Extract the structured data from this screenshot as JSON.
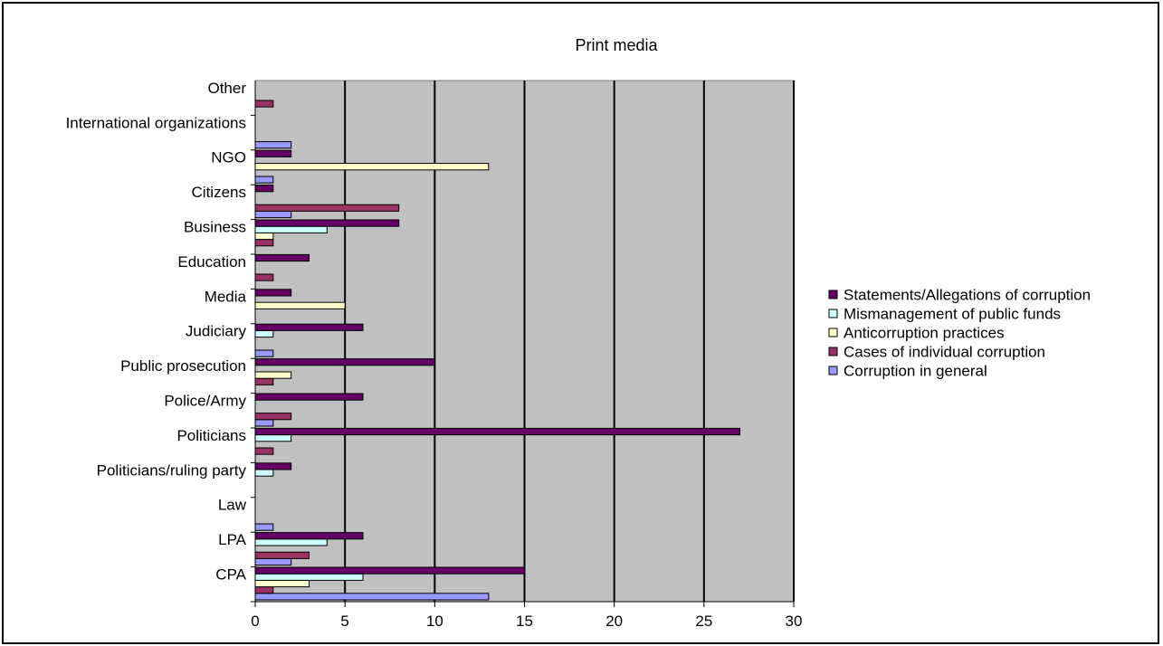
{
  "chart_data": {
    "type": "bar",
    "orientation": "horizontal",
    "title": "Print media",
    "xlabel": "",
    "ylabel": "",
    "xlim": [
      0,
      30
    ],
    "x_ticks": [
      "0",
      "5",
      "10",
      "15",
      "20",
      "25",
      "30"
    ],
    "grid": "vertical lines",
    "plot_background": "#c0c0c0",
    "legend_position": "right",
    "categories": [
      "CPA",
      "LPA",
      "Law",
      "Politicians/ruling party",
      "Politicians",
      "Police/Army",
      "Public prosecution",
      "Judiciary",
      "Media",
      "Education",
      "Business",
      "Citizens",
      "NGO",
      "International organizations",
      "Other"
    ],
    "series": [
      {
        "name": "Corruption in general",
        "color": "#9999ff",
        "values": [
          13,
          2,
          1,
          0,
          0,
          1,
          0,
          1,
          0,
          0,
          0,
          2,
          1,
          2,
          0
        ]
      },
      {
        "name": "Cases of individual corruption",
        "color": "#993366",
        "values": [
          1,
          3,
          0,
          0,
          1,
          2,
          1,
          0,
          0,
          1,
          1,
          8,
          0,
          0,
          1
        ]
      },
      {
        "name": "Anticorruption practices",
        "color": "#ffffcc",
        "values": [
          3,
          0,
          0,
          0,
          0,
          0,
          2,
          0,
          5,
          0,
          1,
          0,
          13,
          0,
          0
        ]
      },
      {
        "name": "Mismanagement of public funds",
        "color": "#ccffff",
        "values": [
          6,
          4,
          0,
          1,
          2,
          0,
          0,
          1,
          0,
          0,
          4,
          0,
          0,
          0,
          0
        ]
      },
      {
        "name": "Statements/Allegations of corruption",
        "color": "#660066",
        "values": [
          15,
          6,
          0,
          2,
          27,
          6,
          10,
          6,
          2,
          3,
          8,
          1,
          2,
          0,
          0
        ]
      }
    ]
  }
}
